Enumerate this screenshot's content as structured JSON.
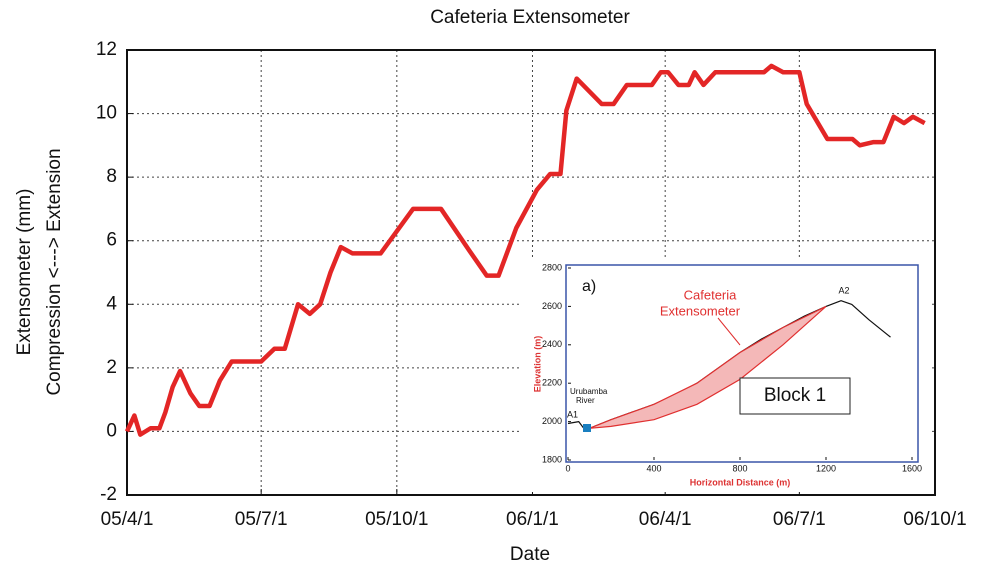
{
  "chart_data": [
    {
      "type": "line",
      "title": "Cafeteria Extensometer",
      "x_label": "Date",
      "y_label": [
        "Extensometer (mm)",
        "Compression <---> Extension"
      ],
      "x": [
        "05/4/1",
        "05/4/6",
        "05/4/10",
        "05/4/17",
        "05/4/23",
        "05/4/27",
        "05/5/2",
        "05/5/7",
        "05/5/14",
        "05/5/20",
        "05/5/27",
        "05/6/3",
        "05/6/11",
        "05/6/20",
        "05/7/1",
        "05/7/10",
        "05/7/17",
        "05/7/26",
        "05/8/3",
        "05/8/10",
        "05/8/17",
        "05/8/24",
        "05/9/1",
        "05/9/20",
        "05/10/12",
        "05/10/31",
        "05/11/19",
        "05/12/1",
        "05/12/9",
        "05/12/21",
        "06/1/4",
        "06/1/13",
        "06/1/20",
        "06/1/24",
        "06/1/31",
        "06/2/17",
        "06/2/25",
        "06/3/6",
        "06/3/23",
        "06/3/29",
        "06/4/3",
        "06/4/10",
        "06/4/17",
        "06/4/21",
        "06/4/27",
        "06/5/5",
        "06/6/7",
        "06/6/12",
        "06/6/20",
        "06/7/1",
        "06/7/6",
        "06/7/20",
        "06/8/6",
        "06/8/11",
        "06/8/20",
        "06/8/27",
        "06/9/3",
        "06/9/10",
        "06/9/16",
        "06/9/24"
      ],
      "series": [
        {
          "color": "#e32626",
          "values": [
            0,
            0.5,
            -0.1,
            0.1,
            0.1,
            0.6,
            1.4,
            1.9,
            1.2,
            0.8,
            0.8,
            1.6,
            2.2,
            2.2,
            2.2,
            2.6,
            2.6,
            4.0,
            3.7,
            4.0,
            5.0,
            5.8,
            5.6,
            5.6,
            7.0,
            7.0,
            5.7,
            4.9,
            4.9,
            6.4,
            7.6,
            8.1,
            8.1,
            10.1,
            11.1,
            10.3,
            10.3,
            10.9,
            10.9,
            11.3,
            11.3,
            10.9,
            10.9,
            11.3,
            10.9,
            11.3,
            11.3,
            11.5,
            11.3,
            11.3,
            10.3,
            9.2,
            9.2,
            9.0,
            9.1,
            9.1,
            9.9,
            9.7,
            9.9,
            9.7
          ]
        }
      ],
      "xlim": [
        "05/4/1",
        "06/10/1"
      ],
      "xticks": [
        "05/4/1",
        "05/7/1",
        "05/10/1",
        "06/1/1",
        "06/4/1",
        "06/7/1",
        "06/10/1"
      ],
      "ylim": [
        -2,
        12
      ],
      "yticks": [
        -2,
        0,
        2,
        4,
        6,
        8,
        10,
        12
      ],
      "grid": true
    },
    {
      "type": "line",
      "x_label": "Horizontal Distance (m)",
      "y_label": "Elevation (m)",
      "x": [
        0,
        50,
        70,
        100,
        200,
        300,
        400,
        500,
        600,
        700,
        800,
        900,
        1000,
        1100,
        1200,
        1270,
        1320,
        1400,
        1500
      ],
      "series": [
        {
          "color": "#111111",
          "values": [
            1990,
            2000,
            1970,
            1965,
            2010,
            2050,
            2090,
            2140,
            2200,
            2280,
            2360,
            2430,
            2490,
            2550,
            2600,
            2630,
            2610,
            2530,
            2440
          ]
        }
      ],
      "xlim": [
        0,
        1600
      ],
      "xticks": [
        0,
        400,
        800,
        1200,
        1600
      ],
      "ylim": [
        1800,
        2800
      ],
      "yticks": [
        1800,
        2000,
        2200,
        2400,
        2600,
        2800
      ],
      "grid": false,
      "annotations": [
        "a)",
        "Cafeteria",
        "Extensometer",
        "A1",
        "A2",
        "Urubamba",
        "River",
        "Block 1"
      ]
    }
  ]
}
